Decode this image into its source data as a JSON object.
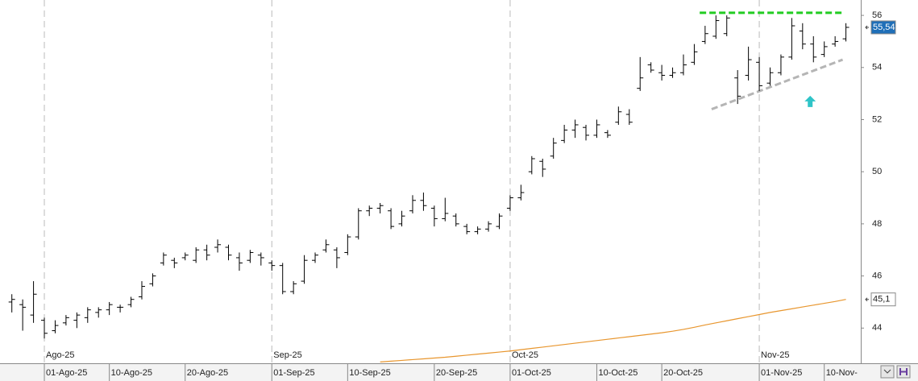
{
  "chart_data": {
    "type": "ohlc",
    "categories": [
      null,
      null,
      null,
      "01-Ago-25",
      null,
      null,
      null,
      null,
      null,
      "10-Ago-25",
      null,
      null,
      null,
      null,
      null,
      null,
      "20-Ago-25",
      null,
      null,
      null,
      null,
      null,
      null,
      null,
      "01-Sep-25",
      null,
      null,
      null,
      null,
      null,
      null,
      "10-Sep-25",
      null,
      null,
      null,
      null,
      null,
      null,
      null,
      "20-Sep-25",
      null,
      null,
      null,
      null,
      null,
      null,
      "01-Oct-25",
      null,
      null,
      null,
      null,
      null,
      null,
      null,
      "10-Oct-25",
      null,
      null,
      null,
      null,
      null,
      "20-Oct-25",
      null,
      null,
      null,
      null,
      null,
      null,
      null,
      null,
      "01-Nov-25",
      null,
      null,
      null,
      null,
      null,
      "10-Nov-",
      null,
      null
    ],
    "month_ticks": [
      {
        "value": 3,
        "label": "Ago-25"
      },
      {
        "value": 24,
        "label": "Sep-25"
      },
      {
        "value": 46,
        "label": "Oct-25"
      },
      {
        "value": 69,
        "label": "Nov-25"
      }
    ],
    "ohlc": {
      "color": "#000000",
      "open": [
        45.0,
        44.9,
        44.5,
        44.3,
        43.9,
        44.2,
        44.3,
        44.4,
        44.6,
        44.7,
        44.8,
        44.9,
        45.2,
        45.7,
        46.5,
        46.6,
        46.7,
        46.6,
        47.0,
        47.1,
        47.1,
        46.7,
        46.6,
        46.8,
        46.5,
        46.4,
        45.4,
        45.8,
        46.6,
        47.0,
        47.0,
        46.9,
        47.5,
        48.5,
        48.6,
        48.5,
        48.0,
        48.5,
        48.9,
        48.6,
        48.2,
        48.3,
        47.9,
        47.7,
        47.8,
        47.9,
        48.6,
        49.0,
        50.0,
        50.4,
        50.6,
        51.2,
        51.6,
        51.7,
        51.4,
        51.5,
        51.9,
        52.2,
        53.2,
        54.1,
        53.8,
        53.7,
        53.8,
        54.2,
        55.0,
        55.2,
        55.3,
        53.6,
        53.7,
        54.2,
        53.4,
        53.8,
        54.4,
        55.4,
        54.9,
        54.5,
        54.9,
        55.1
      ],
      "high": [
        45.3,
        45.1,
        45.8,
        44.4,
        44.3,
        44.5,
        44.6,
        44.8,
        44.8,
        45.0,
        44.9,
        45.2,
        45.8,
        46.1,
        46.9,
        46.7,
        46.9,
        47.1,
        47.2,
        47.4,
        47.2,
        46.9,
        47.0,
        46.9,
        46.6,
        46.5,
        45.8,
        46.8,
        46.9,
        47.4,
        47.1,
        47.6,
        48.6,
        48.7,
        48.8,
        48.6,
        48.5,
        49.1,
        49.2,
        48.7,
        49.0,
        48.4,
        48.0,
        47.9,
        48.1,
        48.4,
        49.1,
        49.5,
        50.6,
        50.5,
        51.3,
        51.8,
        52.0,
        51.8,
        52.0,
        51.6,
        52.5,
        52.4,
        54.4,
        54.2,
        54.1,
        54.0,
        54.5,
        54.9,
        55.6,
        56.0,
        56.0,
        53.9,
        54.8,
        54.4,
        54.0,
        54.5,
        55.9,
        55.7,
        55.2,
        55.0,
        55.2,
        55.7
      ],
      "low": [
        44.6,
        43.9,
        44.2,
        43.6,
        43.8,
        44.1,
        44.0,
        44.2,
        44.4,
        44.5,
        44.6,
        44.8,
        45.1,
        45.6,
        46.4,
        46.3,
        46.6,
        46.5,
        46.6,
        46.9,
        46.6,
        46.2,
        46.5,
        46.4,
        46.2,
        45.3,
        45.3,
        45.7,
        46.5,
        46.9,
        46.3,
        46.8,
        47.4,
        48.3,
        48.4,
        47.8,
        47.9,
        48.4,
        48.5,
        47.9,
        48.1,
        47.9,
        47.6,
        47.6,
        47.7,
        47.8,
        48.5,
        48.9,
        49.9,
        49.8,
        50.5,
        51.1,
        51.3,
        51.2,
        51.3,
        51.3,
        51.8,
        51.8,
        53.1,
        53.8,
        53.5,
        53.6,
        53.7,
        54.1,
        54.9,
        55.1,
        55.2,
        52.6,
        53.5,
        53.1,
        53.3,
        53.7,
        54.3,
        54.7,
        54.2,
        54.4,
        54.8,
        55.0
      ],
      "close": [
        45.1,
        44.8,
        45.3,
        43.8,
        44.1,
        44.4,
        44.5,
        44.7,
        44.7,
        44.9,
        44.8,
        45.1,
        45.6,
        46.0,
        46.8,
        46.5,
        46.8,
        47.0,
        46.8,
        47.2,
        46.8,
        46.5,
        46.9,
        46.7,
        46.4,
        45.4,
        45.7,
        46.6,
        46.8,
        47.2,
        46.7,
        47.5,
        48.5,
        48.6,
        48.7,
        47.9,
        48.3,
        48.9,
        48.7,
        48.2,
        48.4,
        48.0,
        47.7,
        47.8,
        48.0,
        48.3,
        49.0,
        49.2,
        50.5,
        50.1,
        51.1,
        51.6,
        51.8,
        51.4,
        51.8,
        51.4,
        52.3,
        51.9,
        53.6,
        53.9,
        53.7,
        53.8,
        54.1,
        54.6,
        55.3,
        55.8,
        55.9,
        52.9,
        54.3,
        53.3,
        53.8,
        54.4,
        55.6,
        54.9,
        54.4,
        54.8,
        55.0,
        55.54
      ]
    },
    "moving_average": {
      "color": "#e8962e",
      "values": [
        null,
        null,
        null,
        null,
        null,
        null,
        null,
        null,
        null,
        null,
        null,
        null,
        null,
        null,
        null,
        null,
        null,
        null,
        null,
        null,
        null,
        null,
        null,
        null,
        null,
        null,
        null,
        null,
        null,
        null,
        null,
        null,
        null,
        null,
        42.7,
        42.73,
        42.76,
        42.79,
        42.82,
        42.85,
        42.88,
        42.92,
        42.96,
        43.0,
        43.04,
        43.08,
        43.12,
        43.17,
        43.22,
        43.27,
        43.32,
        43.37,
        43.42,
        43.47,
        43.52,
        43.57,
        43.62,
        43.67,
        43.72,
        43.77,
        43.82,
        43.88,
        43.95,
        44.03,
        44.12,
        44.2,
        44.28,
        44.36,
        44.44,
        44.52,
        44.6,
        44.67,
        44.74,
        44.81,
        44.88,
        44.95,
        45.02,
        45.1
      ]
    },
    "price_markers": [
      {
        "value": 55.54,
        "label": "55,54",
        "color": "#1f6fb8"
      },
      {
        "value": 45.1,
        "label": "45,1",
        "color": "#ffffff"
      }
    ],
    "annotations": [
      {
        "color": "#22cc22",
        "x": [
          63.5,
          76.7
        ],
        "y": [
          56.1,
          56.1
        ]
      },
      {
        "color": "#b5b5b5",
        "x": [
          64.6,
          76.7
        ],
        "y": [
          52.4,
          54.3
        ]
      }
    ],
    "arrow": {
      "x": 73.7,
      "y": 52.7,
      "color": "#2fc4c8"
    },
    "ylim": [
      42.68,
      56.59
    ],
    "yticks": [
      44,
      46,
      48,
      50,
      52,
      54,
      56
    ]
  }
}
